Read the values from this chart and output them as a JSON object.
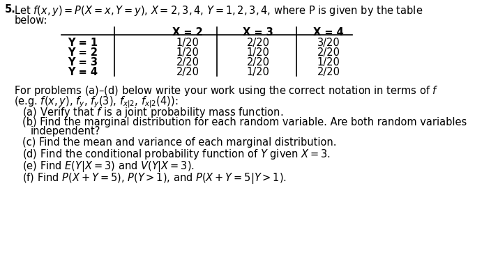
{
  "background_color": "#ffffff",
  "title_number": "5.",
  "title_text": "Let $f(x,y)=P(X=x,Y=y)$, $X=2,3,4$, $Y=1,2,3,4$, where P is given by the table",
  "title_line2": "below:",
  "table": {
    "col_headers": [
      "",
      "X = 2",
      "X = 3",
      "X = 4"
    ],
    "rows": [
      [
        "Y = 1",
        "1/20",
        "2/20",
        "3/20"
      ],
      [
        "Y = 2",
        "1/20",
        "1/20",
        "2/20"
      ],
      [
        "Y = 3",
        "2/20",
        "2/20",
        "1/20"
      ],
      [
        "Y = 4",
        "2/20",
        "1/20",
        "2/20"
      ]
    ]
  },
  "problems_intro": "For problems (a)–(d) below write your work using the correct notation in terms of $f$",
  "problems_eg": "(e.g. $f(x,y)$, $f_y$, $f_y(3)$, $f_{x|2}$, $f_{x|2}(4)$):",
  "problems": [
    "(a) Verify that $f$ is a joint probability mass function.",
    "(b) Find the marginal distribution for each random variable. Are both random variables",
    "independent?",
    "(c) Find the mean and variance of each marginal distribution.",
    "(d) Find the conditional probability function of $Y$ given $X=3$.",
    "(e) Find $E(Y|X=3)$ and $V(Y|X=3)$.",
    "(f) Find $P(X+Y=5)$, $P(Y>1)$, and $P(X+Y=5|Y>1)$."
  ],
  "font_size_title": 11,
  "font_size_table": 10.5,
  "font_size_body": 10.5
}
